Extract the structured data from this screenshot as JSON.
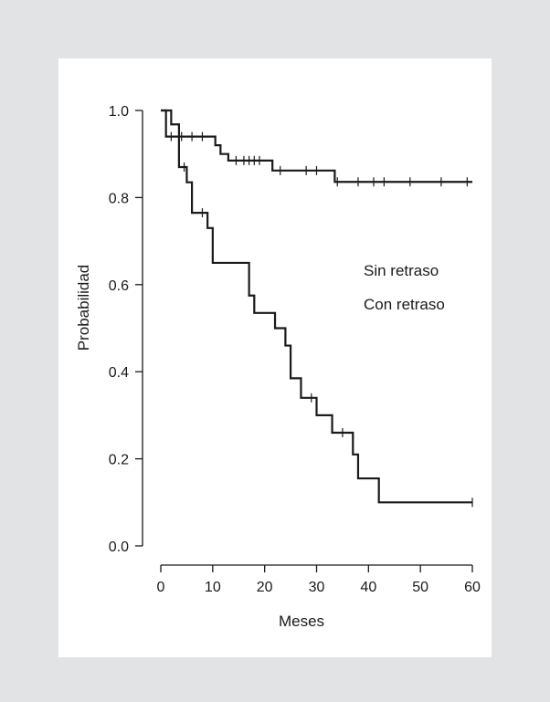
{
  "chart_data": {
    "type": "line",
    "xlabel": "Meses",
    "ylabel": "Probabilidad",
    "xlim": [
      0,
      60
    ],
    "ylim": [
      0,
      1
    ],
    "x_ticks": [
      "0",
      "10",
      "20",
      "30",
      "40",
      "50",
      "60"
    ],
    "y_ticks": [
      "0.0",
      "0.2",
      "0.4",
      "0.6",
      "0.8",
      "1.0"
    ],
    "annotations": [
      "Sin retraso",
      "Con retraso"
    ],
    "legend_position": "right",
    "series": [
      {
        "name": "Sin retraso",
        "step": true,
        "points": [
          [
            0,
            1.0
          ],
          [
            1,
            0.94
          ],
          [
            10,
            0.94
          ],
          [
            10.5,
            0.92
          ],
          [
            11.5,
            0.9
          ],
          [
            13,
            0.885
          ],
          [
            21,
            0.885
          ],
          [
            21.5,
            0.862
          ],
          [
            33,
            0.862
          ],
          [
            33.5,
            0.836
          ],
          [
            60,
            0.836
          ]
        ],
        "censored": [
          [
            2,
            0.94
          ],
          [
            4,
            0.94
          ],
          [
            6,
            0.94
          ],
          [
            8,
            0.94
          ],
          [
            14.5,
            0.885
          ],
          [
            16,
            0.885
          ],
          [
            17,
            0.885
          ],
          [
            18,
            0.885
          ],
          [
            19,
            0.885
          ],
          [
            23,
            0.862
          ],
          [
            28,
            0.862
          ],
          [
            30,
            0.862
          ],
          [
            34,
            0.836
          ],
          [
            38,
            0.836
          ],
          [
            41,
            0.836
          ],
          [
            43,
            0.836
          ],
          [
            48,
            0.836
          ],
          [
            54,
            0.836
          ],
          [
            59,
            0.836
          ]
        ]
      },
      {
        "name": "Con retraso",
        "step": true,
        "points": [
          [
            0,
            1.0
          ],
          [
            2,
            0.968
          ],
          [
            3.5,
            0.87
          ],
          [
            5,
            0.835
          ],
          [
            6,
            0.765
          ],
          [
            9,
            0.73
          ],
          [
            10,
            0.65
          ],
          [
            17,
            0.575
          ],
          [
            18,
            0.535
          ],
          [
            22,
            0.5
          ],
          [
            24,
            0.46
          ],
          [
            25,
            0.385
          ],
          [
            27,
            0.34
          ],
          [
            30,
            0.3
          ],
          [
            33,
            0.26
          ],
          [
            37,
            0.21
          ],
          [
            38,
            0.155
          ],
          [
            42,
            0.1
          ],
          [
            60,
            0.1
          ]
        ],
        "censored": [
          [
            4.5,
            0.87
          ],
          [
            8,
            0.765
          ],
          [
            29,
            0.34
          ],
          [
            35,
            0.26
          ],
          [
            60,
            0.1
          ]
        ]
      }
    ]
  }
}
